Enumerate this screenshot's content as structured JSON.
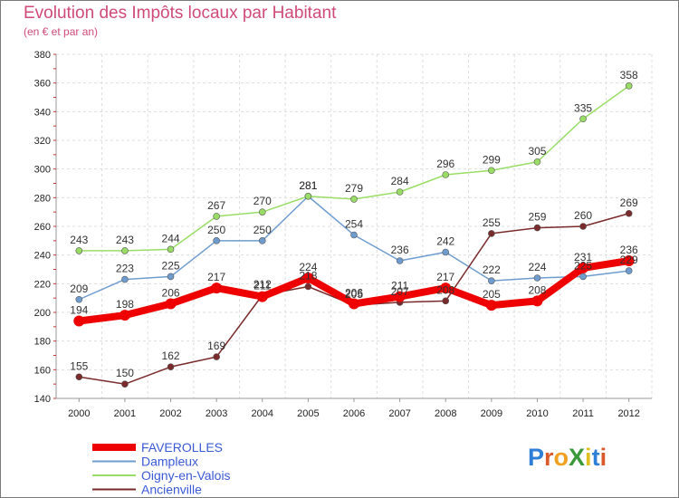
{
  "title": "Evolution des Impôts locaux par Habitant",
  "subtitle": "(en € et par an)",
  "logo": {
    "text": "ProXiti",
    "colors": [
      "#2f7fd6",
      "#d95a2b",
      "#f0a020",
      "#3a9a3a",
      "#e0c020",
      "#2f7fd6",
      "#d95a2b"
    ]
  },
  "chart_data": {
    "type": "line",
    "title": "Evolution des Impôts locaux par Habitant",
    "subtitle": "(en € et par an)",
    "xlabel": "",
    "ylabel": "",
    "ylim": [
      140,
      380
    ],
    "y_ticks": [
      140,
      160,
      180,
      200,
      220,
      240,
      260,
      280,
      300,
      320,
      340,
      360,
      380
    ],
    "grid": true,
    "legend_position": "bottom-left",
    "categories": [
      "2000",
      "2001",
      "2002",
      "2003",
      "2004",
      "2005",
      "2006",
      "2007",
      "2008",
      "2009",
      "2010",
      "2011",
      "2012"
    ],
    "series": [
      {
        "name": "Dampleux",
        "color": "#6f9ccf",
        "values": [
          209,
          223,
          225,
          250,
          250,
          281,
          254,
          236,
          242,
          222,
          224,
          225,
          229
        ]
      },
      {
        "name": "Oigny-en-Valois",
        "color": "#99dd66",
        "values": [
          243,
          243,
          244,
          267,
          270,
          281,
          279,
          284,
          296,
          299,
          305,
          335,
          358
        ]
      },
      {
        "name": "Ancienville",
        "color": "#7a2a2a",
        "values": [
          155,
          150,
          162,
          169,
          212,
          218,
          205,
          207,
          208,
          255,
          259,
          260,
          269
        ]
      },
      {
        "name": "FAVEROLLES",
        "color": "#ee0000",
        "values": [
          194,
          198,
          206,
          217,
          211,
          224,
          206,
          211,
          217,
          205,
          208,
          231,
          236
        ]
      }
    ],
    "legend_order": [
      "FAVEROLLES",
      "Dampleux",
      "Oigny-en-Valois",
      "Ancienville"
    ]
  }
}
